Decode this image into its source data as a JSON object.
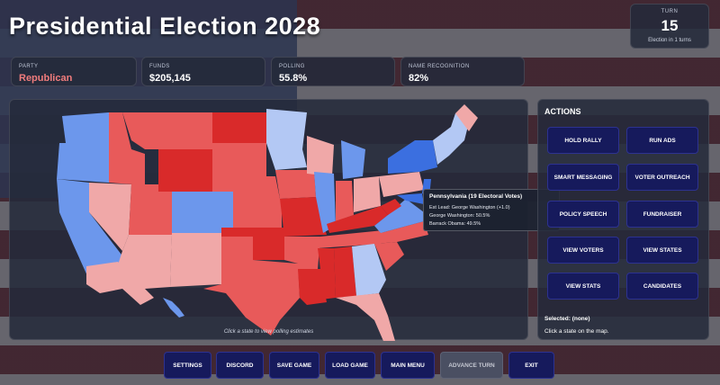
{
  "header": {
    "title": "Presidential Election 2028"
  },
  "turn": {
    "label": "TURN",
    "number": "15",
    "subtitle": "Election in 1 turns"
  },
  "stats": {
    "party": {
      "label": "PARTY",
      "value": "Republican",
      "color": "#f07c7c"
    },
    "funds": {
      "label": "FUNDS",
      "value": "$205,145"
    },
    "polling": {
      "label": "POLLING",
      "value": "55.8%"
    },
    "recognition": {
      "label": "NAME RECOGNITION",
      "value": "82%"
    }
  },
  "map": {
    "hint": "Click a state to view polling estimates",
    "tooltip": {
      "title": "Pennsylvania (19 Electoral Votes)",
      "lead": "Est Lead: George Washington (+1.0)",
      "cand1": "George Washington: 50.5%",
      "cand2": "Barrack Obama: 49.5%"
    },
    "colors": {
      "safe_red": "#d92a2a",
      "lean_red": "#e85a5a",
      "tilt_red": "#f0a8a8",
      "safe_blue": "#3b6fe0",
      "lean_blue": "#6c97ec",
      "tilt_blue": "#b3c8f4"
    }
  },
  "actions": {
    "heading": "ACTIONS",
    "buttons": [
      "HOLD RALLY",
      "RUN ADS",
      "SMART MESSAGING",
      "VOTER OUTREACH",
      "POLICY SPEECH",
      "FUNDRAISER",
      "VIEW VOTERS",
      "VIEW STATES",
      "VIEW STATS",
      "CANDIDATES"
    ],
    "selected": "Selected: (none)",
    "instruction": "Click a state on the map."
  },
  "bottom": {
    "buttons": [
      "SETTINGS",
      "DISCORD",
      "SAVE GAME",
      "LOAD GAME",
      "MAIN MENU",
      "ADVANCE TURN",
      "EXIT"
    ]
  }
}
